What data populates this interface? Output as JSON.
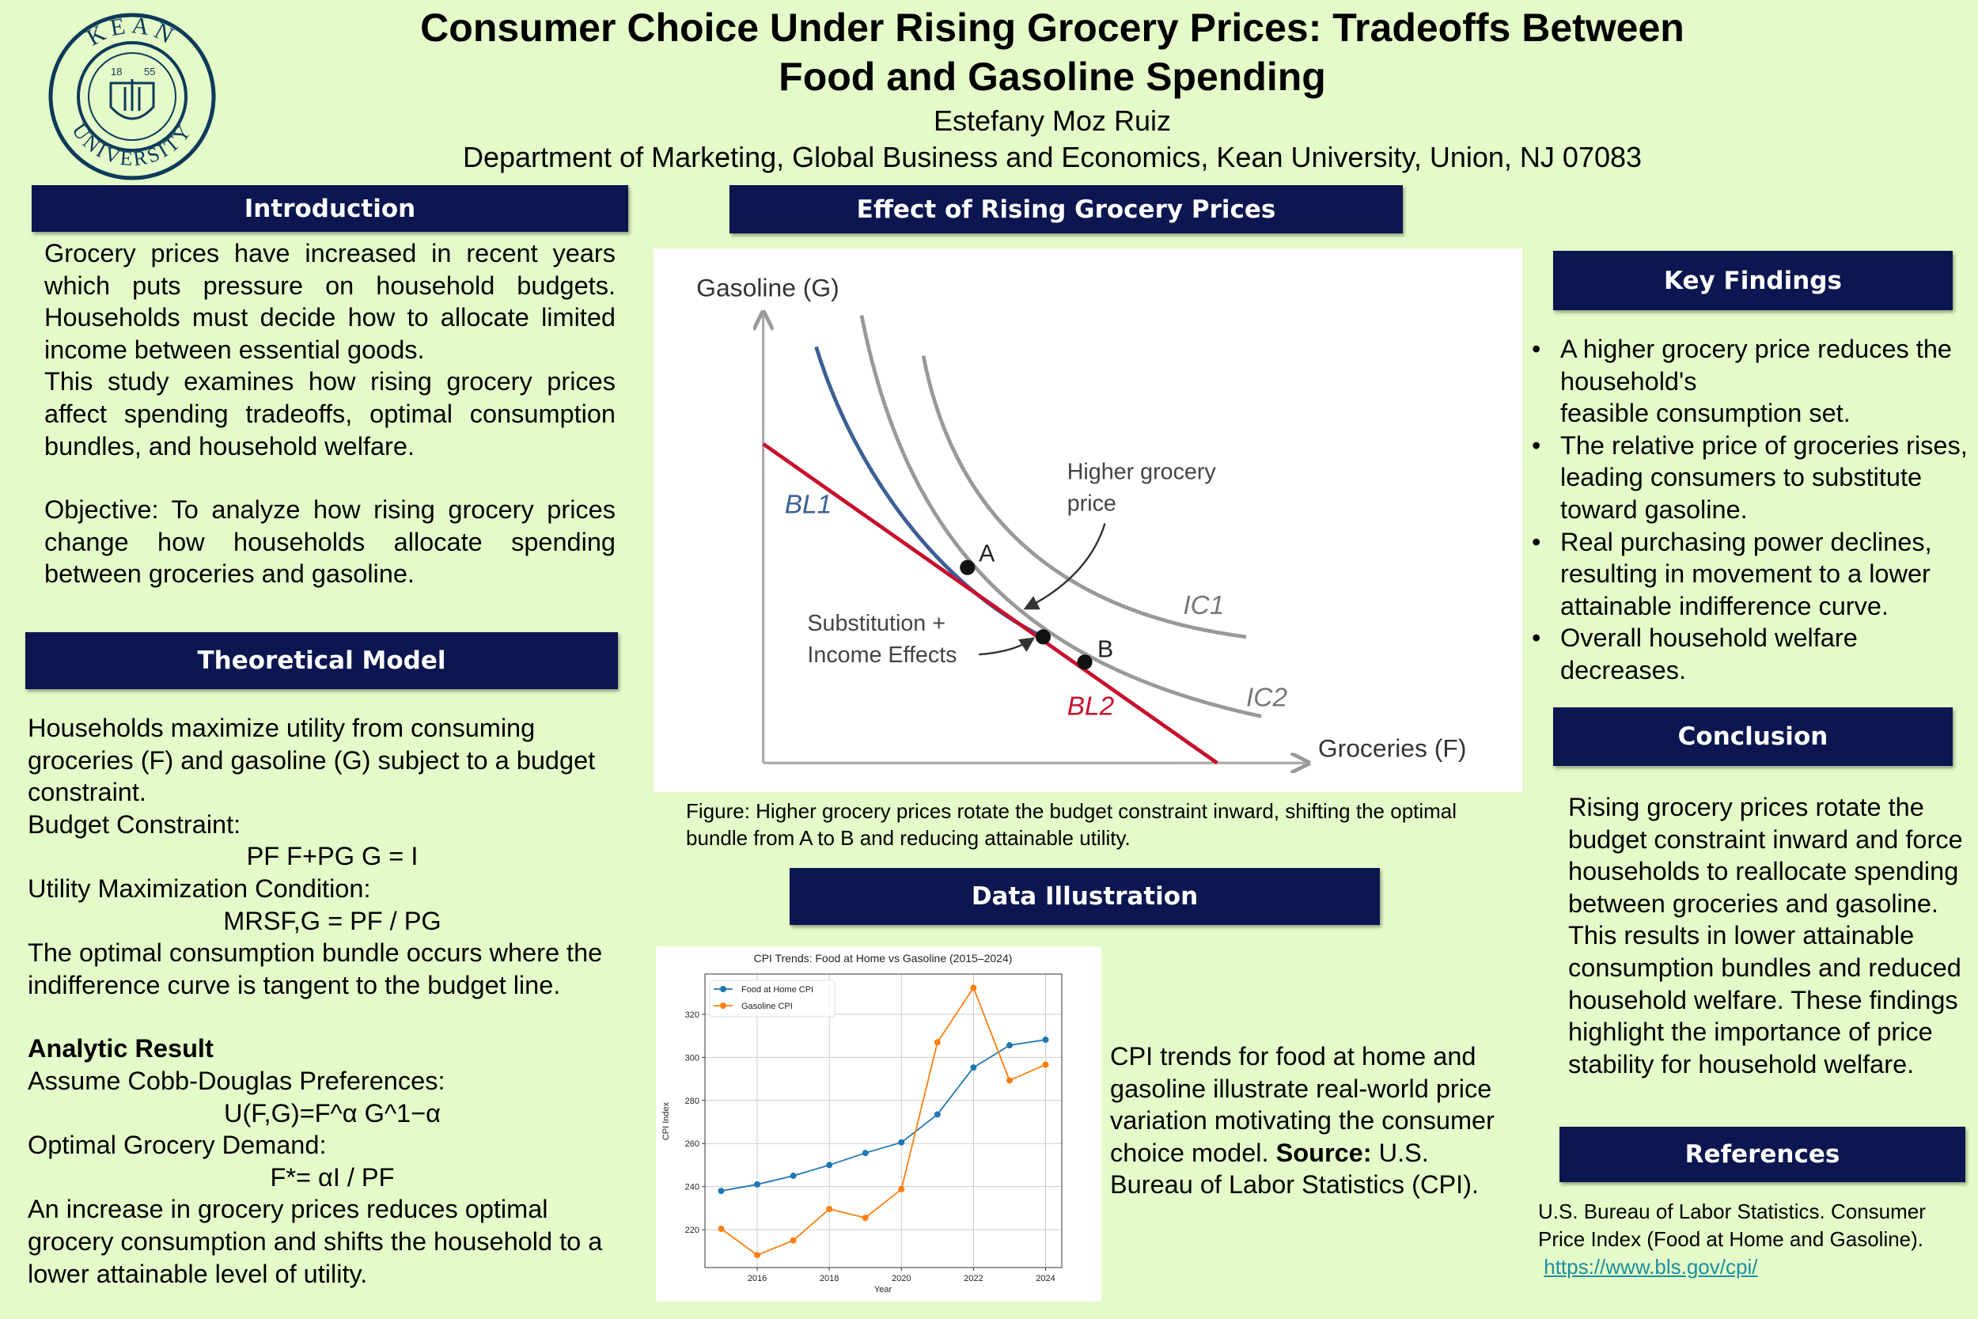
{
  "header": {
    "title_line1": "Consumer Choice Under Rising Grocery Prices: Tradeoffs Between",
    "title_line2": "Food and Gasoline Spending",
    "author": "Estefany Moz Ruiz",
    "affiliation": "Department of Marketing, Global Business and Economics, Kean University, Union, NJ 07083",
    "logo_text": "KEAN UNIVERSITY 1855",
    "brand_color": "#0c1650",
    "accent_background": "#e4fac8"
  },
  "introduction": {
    "heading": "Introduction",
    "p1": "Grocery prices have increased in recent years which puts pressure on household budgets. Households must decide how to allocate limited income between essential goods.",
    "p2": "This study examines how rising grocery prices affect spending tradeoffs, optimal consumption bundles, and household welfare.",
    "p3": "Objective: To analyze how rising grocery prices change how households allocate spending between groceries and gasoline."
  },
  "theory": {
    "heading": "Theoretical Model",
    "p1": "Households maximize utility from consuming groceries (F) and gasoline (G) subject to a budget constraint.",
    "budget_label": "Budget Constraint:",
    "budget_eq": "PF F+PG G = I",
    "umc_label": "Utility Maximization Condition:",
    "umc_eq": "MRSF,G = PF / PG",
    "p2": "The optimal consumption bundle occurs where the indifference curve is tangent to the budget line.",
    "analytic_heading": "Analytic Result",
    "cd_label": "Assume Cobb-Douglas Preferences:",
    "cd_eq": "U(F,G)=F^α G^1−α",
    "demand_label": "Optimal Grocery Demand:",
    "demand_eq": "F*= αI / PF",
    "p3": "An increase in grocery prices reduces optimal grocery consumption and shifts the household to a lower attainable level of utility."
  },
  "effect": {
    "heading": "Effect of Rising Grocery Prices",
    "diagram": {
      "y_axis": "Gasoline (G)",
      "x_axis": "Groceries (F)",
      "bl1": "BL1",
      "bl2": "BL2",
      "ic1": "IC1",
      "ic2": "IC2",
      "point_a": "A",
      "point_b": "B",
      "note_price_1": "Higher grocery",
      "note_price_2": "price",
      "note_sub_1": "Substitution +",
      "note_sub_2": "Income Effects"
    },
    "caption": "Figure: Higher grocery prices rotate the budget constraint inward, shifting the optimal bundle from A to B and reducing attainable utility."
  },
  "data_illustration": {
    "heading": "Data Illustration",
    "text_pre": "CPI trends for food at home and gasoline illustrate real-world price variation motivating the consumer choice model.",
    "source_label": "Source:",
    "source_text": "U.S. Bureau of Labor Statistics (CPI)."
  },
  "chart_data": {
    "type": "line",
    "title": "CPI Trends: Food at Home vs Gasoline (2015–2024)",
    "xlabel": "Year",
    "ylabel": "CPI Index",
    "x": [
      2015,
      2016,
      2017,
      2018,
      2019,
      2020,
      2021,
      2022,
      2023,
      2024
    ],
    "xticks": [
      "2016",
      "2018",
      "2020",
      "2022",
      "2024"
    ],
    "yticks": [
      "220",
      "240",
      "260",
      "280",
      "300",
      "320"
    ],
    "xlim": [
      2014.55,
      2024.45
    ],
    "ylim": [
      202.4,
      338.7
    ],
    "grid": true,
    "legend": "top-left",
    "series": [
      {
        "name": "Food at Home CPI",
        "color": "#1f77b4",
        "values": [
          238.0,
          241.0,
          245.0,
          250.0,
          255.6,
          260.5,
          273.5,
          295.3,
          305.6,
          308.2
        ]
      },
      {
        "name": "Gasoline CPI",
        "color": "#ff7f0e",
        "values": [
          220.4,
          208.2,
          215.0,
          229.6,
          225.5,
          238.8,
          307.0,
          332.3,
          289.3,
          296.6
        ]
      }
    ]
  },
  "key_findings": {
    "heading": "Key Findings",
    "items": [
      "A higher grocery price reduces the household's\n feasible consumption set.",
      "The relative price of groceries rises, leading consumers to substitute toward gasoline.",
      "Real purchasing power declines, resulting in movement to a lower attainable indifference curve.",
      "Overall household welfare decreases."
    ]
  },
  "conclusion": {
    "heading": "Conclusion",
    "text": "Rising grocery prices rotate the budget constraint inward and force households to reallocate spending between groceries and gasoline. This results in lower attainable consumption bundles and reduced household welfare. These findings highlight the importance of price stability for household welfare."
  },
  "references": {
    "heading": "References",
    "text": "U.S. Bureau of Labor Statistics. Consumer Price Index (Food at Home and Gasoline).",
    "link": "https://www.bls.gov/cpi/"
  }
}
